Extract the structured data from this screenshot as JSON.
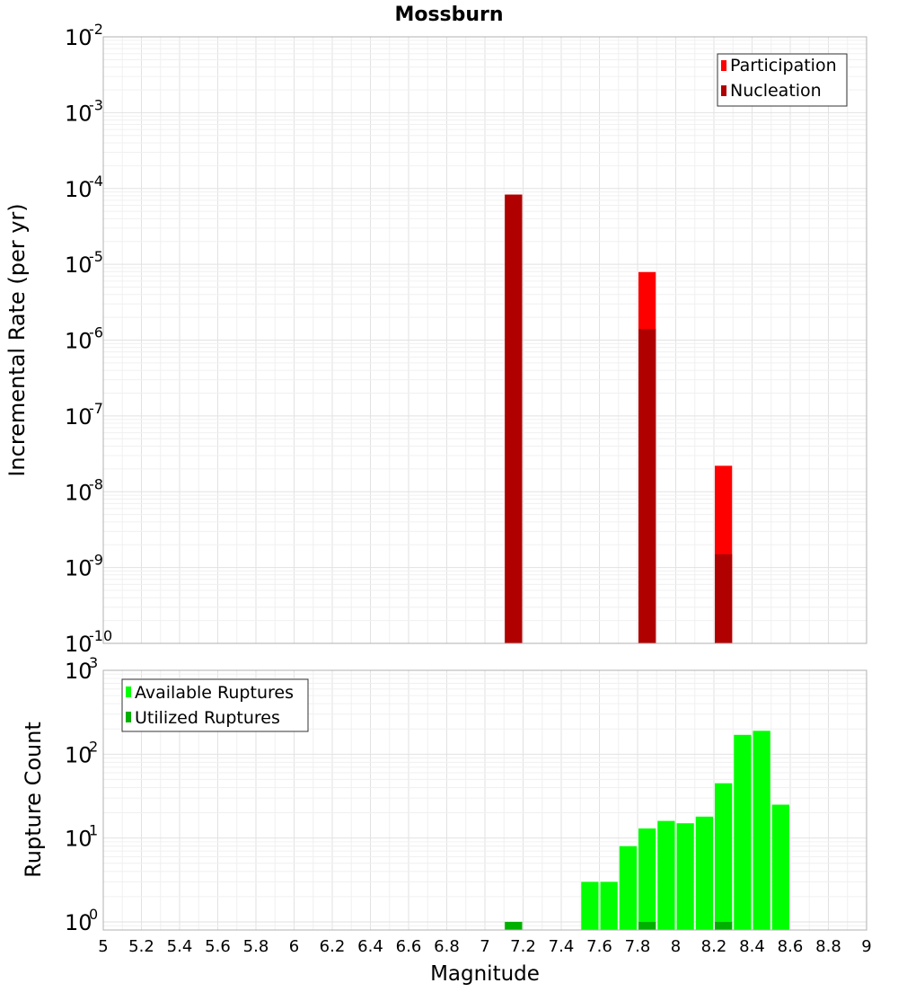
{
  "title": "Mossburn",
  "colors": {
    "participation": "#ff0000",
    "nucleation": "#b00000",
    "available": "#00ff00",
    "utilized": "#00b000"
  },
  "x_axis": {
    "label": "Magnitude",
    "range": [
      5,
      9
    ],
    "ticks": [
      "5",
      "5.2",
      "5.4",
      "5.6",
      "5.8",
      "6",
      "6.2",
      "6.4",
      "6.6",
      "6.8",
      "7",
      "7.2",
      "7.4",
      "7.6",
      "7.8",
      "8",
      "8.2",
      "8.4",
      "8.6",
      "8.8",
      "9"
    ]
  },
  "chart_data": [
    {
      "type": "bar",
      "title": "Mossburn",
      "xlabel": "",
      "ylabel": "Incremental Rate (per yr)",
      "yscale": "log",
      "ylim": [
        1e-10,
        0.01
      ],
      "y_tick_exponents": [
        "-2",
        "-3",
        "-4",
        "-5",
        "-6",
        "-7",
        "-8",
        "-9",
        "-10"
      ],
      "xlim": [
        5,
        9
      ],
      "grid": true,
      "legend_position": "top-right",
      "bin_width": 0.1,
      "series": [
        {
          "name": "Participation",
          "x": [
            7.15,
            7.85,
            8.25
          ],
          "values": [
            8.3e-05,
            7.9e-06,
            2.2e-08
          ]
        },
        {
          "name": "Nucleation",
          "x": [
            7.15,
            7.85,
            8.25
          ],
          "values": [
            8.3e-05,
            1.4e-06,
            1.5e-09
          ]
        }
      ]
    },
    {
      "type": "bar",
      "title": "",
      "xlabel": "Magnitude",
      "ylabel": "Rupture Count",
      "yscale": "log",
      "ylim": [
        0.8,
        1000
      ],
      "y_tick_exponents": [
        "3",
        "2",
        "1",
        "0"
      ],
      "xlim": [
        5,
        9
      ],
      "grid": true,
      "legend_position": "top-left",
      "bin_width": 0.1,
      "series": [
        {
          "name": "Available Ruptures",
          "x": [
            7.15,
            7.55,
            7.65,
            7.75,
            7.85,
            7.95,
            8.05,
            8.15,
            8.25,
            8.35,
            8.45,
            8.55
          ],
          "values": [
            1,
            3,
            3,
            8,
            13,
            16,
            15,
            18,
            45,
            170,
            190,
            25
          ]
        },
        {
          "name": "Utilized Ruptures",
          "x": [
            7.15,
            7.85,
            8.25
          ],
          "values": [
            1,
            1,
            1
          ]
        }
      ]
    }
  ]
}
